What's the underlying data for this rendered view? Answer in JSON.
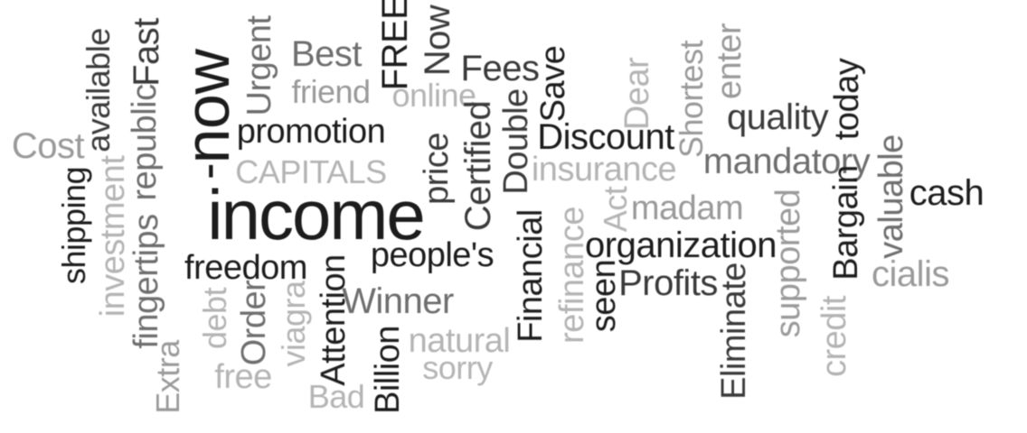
{
  "words": {
    "now": "now",
    "dash": "-",
    "income": "income",
    "promotion": "promotion",
    "urgent": "Urgent",
    "best": "Best",
    "free_caps": "FREE",
    "now_cap": "Now",
    "friend": "friend",
    "online": "online",
    "fees": "Fees",
    "save": "Save",
    "dear": "Dear",
    "shortest": "Shortest",
    "enter": "enter",
    "quality": "quality",
    "today": "today",
    "cost": "Cost",
    "available": "available",
    "fast": "Fast",
    "republic": "republic",
    "fingertips": "fingertips",
    "investment": "investment",
    "shipping": "shipping",
    "extra": "Extra",
    "capitals": "CAPITALS",
    "price": "price",
    "certified": "Certified",
    "double": "Double",
    "discount": "Discount",
    "insurance": "insurance",
    "mandatory": "mandatory",
    "valuable": "valuable",
    "cash": "cash",
    "act": "Act",
    "madam": "madam",
    "bargain": "Bargain",
    "supported": "supported",
    "organization": "organization",
    "freedom": "freedom",
    "peoples": "people's",
    "financial": "Financial",
    "refinance": "refinance",
    "seen": "seen",
    "profits": "Profits",
    "eliminate": "Eliminate",
    "credit": "credit",
    "cialis": "cialis",
    "debt": "debt",
    "order": "Order",
    "viagra": "viagra",
    "attention": "Attention",
    "winner": "Winner",
    "billion": "Billion",
    "natural": "natural",
    "sorry": "sorry",
    "bad": "Bad",
    "free": "free"
  }
}
